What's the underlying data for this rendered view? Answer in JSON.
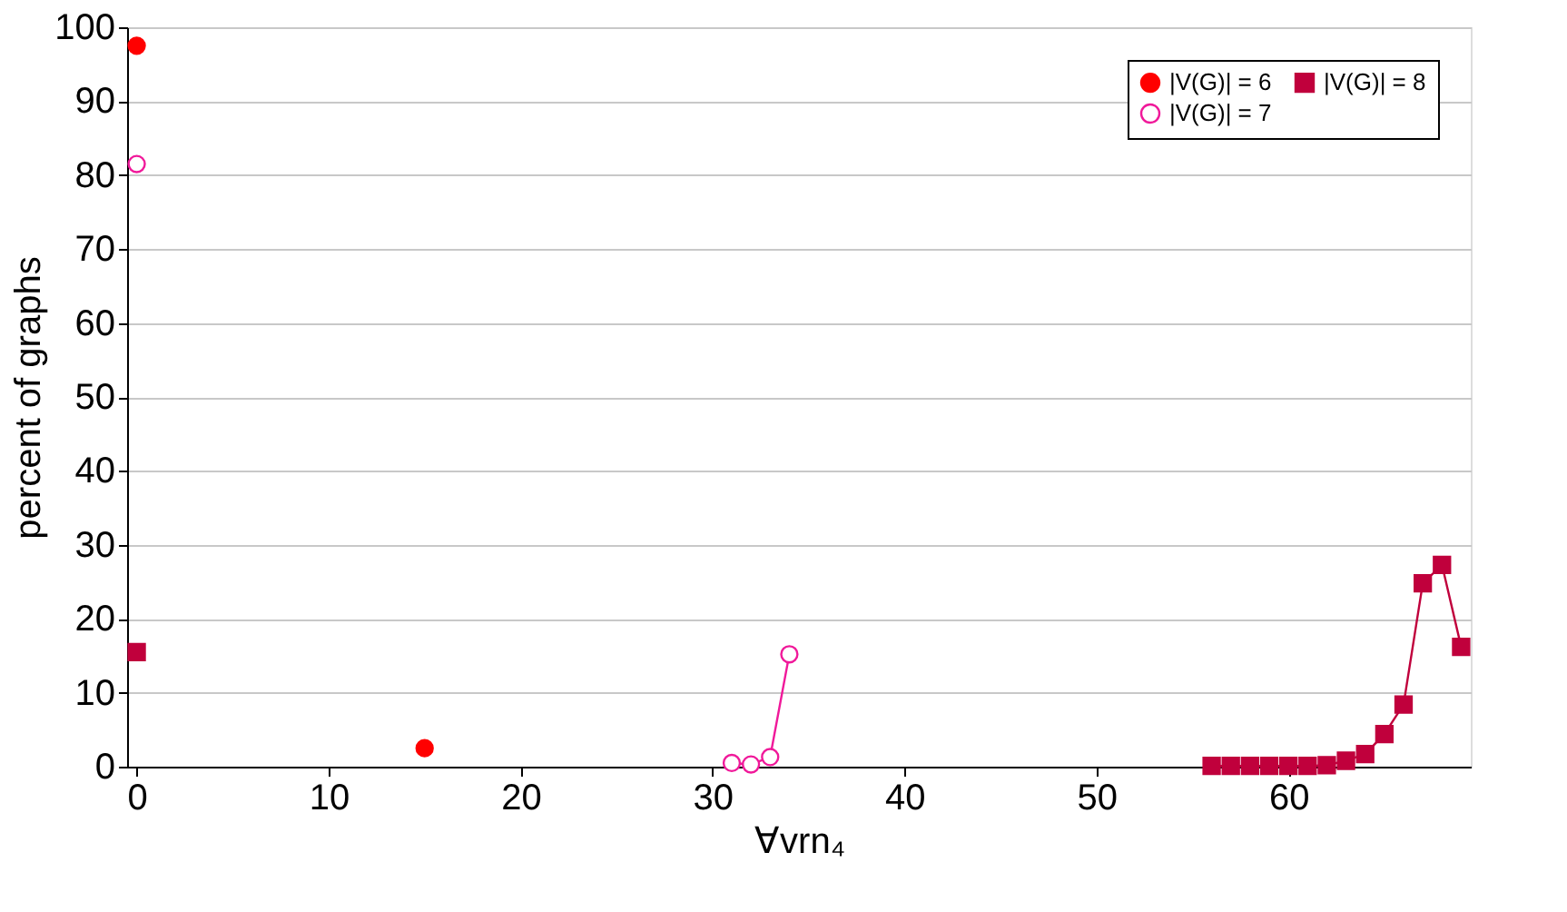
{
  "chart_data": {
    "type": "line",
    "xlabel": "∀vrn₄",
    "ylabel": "percent of graphs",
    "xlim": [
      -0.5,
      69.5
    ],
    "ylim": [
      0,
      100
    ],
    "xticks": [
      0,
      10,
      20,
      30,
      40,
      50,
      60
    ],
    "yticks": [
      0,
      10,
      20,
      30,
      40,
      50,
      60,
      70,
      80,
      90,
      100
    ],
    "grid": "y",
    "legend": "top right",
    "line_style": "solid",
    "series": [
      {
        "name": "|V(G)| = 6",
        "type": "scatter",
        "color": "#ff0000",
        "marker": "circle",
        "x": [
          0,
          15
        ],
        "values": [
          97.5,
          2.5
        ]
      },
      {
        "name": "|V(G)| = 7",
        "color": "#f0199a",
        "marker": "circle",
        "x": [
          0,
          1,
          31,
          32,
          33,
          34
        ],
        "values": [
          81.5,
          null,
          0.5,
          0.3,
          1.3,
          15.2
        ]
      },
      {
        "name": "|V(G)| = 8",
        "color": "#c0003c",
        "marker": "square",
        "x": [
          0,
          1,
          56,
          57,
          58,
          59,
          60,
          61,
          62,
          63,
          64,
          65,
          66,
          67,
          68,
          69
        ],
        "values": [
          15.5,
          null,
          0.1,
          0.1,
          0.1,
          0.1,
          0.1,
          0.1,
          0.2,
          0.8,
          1.7,
          4.4,
          8.4,
          24.8,
          27.3,
          16.2
        ]
      }
    ]
  }
}
